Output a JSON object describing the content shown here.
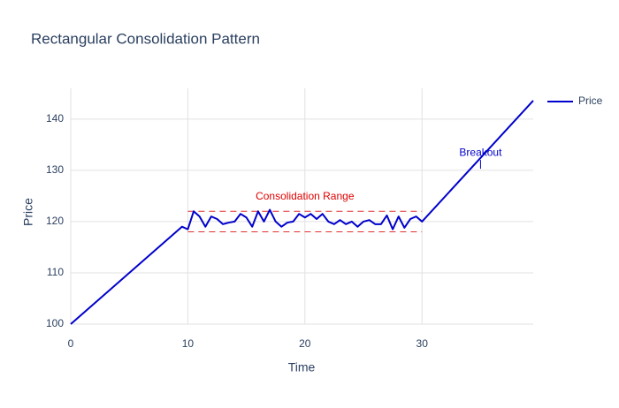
{
  "chart_data": {
    "type": "line",
    "title": "Rectangular Consolidation Pattern",
    "x_label": "Time",
    "y_label": "Price",
    "x": [
      0,
      9.5,
      10,
      10.5,
      11,
      11.5,
      12,
      12.5,
      13,
      13.5,
      14,
      14.5,
      15,
      15.5,
      16,
      16.5,
      17,
      17.5,
      18,
      18.5,
      19,
      19.5,
      20,
      20.5,
      21,
      21.5,
      22,
      22.5,
      23,
      23.5,
      24,
      24.5,
      25,
      25.5,
      26,
      26.5,
      27,
      27.5,
      28,
      28.5,
      29,
      29.5,
      30,
      39.5
    ],
    "series": [
      {
        "name": "Price",
        "color": "#0000cc",
        "values": [
          100,
          119,
          118.5,
          122,
          121,
          119,
          121,
          120.5,
          119.5,
          119.8,
          120,
          121.5,
          120.8,
          119,
          122,
          120,
          122.3,
          120,
          119,
          119.8,
          120,
          121.5,
          120.8,
          121.5,
          120.5,
          121.5,
          120,
          119.5,
          120.3,
          119.5,
          120,
          119,
          120,
          120.3,
          119.5,
          119.5,
          121.2,
          118.5,
          121,
          118.8,
          120.5,
          121,
          120,
          143.6
        ]
      }
    ],
    "xlim": [
      0,
      39.5
    ],
    "xticks": [
      0,
      10,
      20,
      30
    ],
    "ylim": [
      100,
      146
    ],
    "yticks": [
      100,
      110,
      120,
      130,
      140
    ],
    "grid": true,
    "legend": "right",
    "shapes": [
      {
        "x0": 10,
        "x1": 30,
        "y": 122,
        "color": "#e03030"
      },
      {
        "x0": 10,
        "x1": 30,
        "y": 118,
        "color": "#e03030"
      }
    ],
    "annotations": [
      {
        "text": "Consolidation Range",
        "x": 20,
        "y": 124.8,
        "color": "#e00000"
      },
      {
        "text": "Breakout",
        "x": 35,
        "y": 133.4,
        "ay": 130.3,
        "color": "#0000cc"
      }
    ]
  }
}
